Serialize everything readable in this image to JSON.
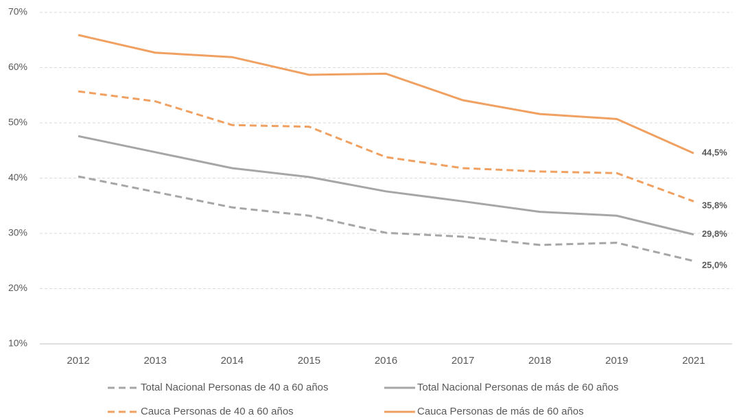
{
  "chart_data": {
    "type": "line",
    "categories": [
      "2012",
      "2013",
      "2014",
      "2015",
      "2016",
      "2017",
      "2018",
      "2019",
      "2021"
    ],
    "series": [
      {
        "name": "Total Nacional Personas de 40 a 60 años",
        "color": "#a6a6a6",
        "dash": true,
        "values": [
          40.3,
          37.5,
          34.7,
          33.2,
          30.1,
          29.4,
          27.9,
          28.3,
          25.0
        ],
        "value_labels": [
          null,
          null,
          null,
          null,
          null,
          null,
          null,
          null,
          "25,0%"
        ]
      },
      {
        "name": "Total Nacional Personas de más de 60 años",
        "color": "#a6a6a6",
        "dash": false,
        "values": [
          47.6,
          44.7,
          41.8,
          40.2,
          37.6,
          35.8,
          33.9,
          33.2,
          29.8
        ],
        "value_labels": [
          null,
          null,
          null,
          null,
          null,
          null,
          null,
          null,
          "29,8%"
        ]
      },
      {
        "name": "Cauca Personas de 40 a 60 años",
        "color": "#f0a060",
        "dash": true,
        "values": [
          55.7,
          53.9,
          49.6,
          49.3,
          43.8,
          41.8,
          41.2,
          40.9,
          35.8
        ],
        "value_labels": [
          null,
          null,
          null,
          null,
          null,
          null,
          null,
          null,
          "35,8%"
        ]
      },
      {
        "name": "Cauca Personas de más de 60 años",
        "color": "#f0a060",
        "dash": false,
        "values": [
          65.9,
          62.7,
          61.9,
          58.7,
          58.9,
          54.1,
          51.6,
          50.7,
          44.5
        ],
        "value_labels": [
          null,
          null,
          null,
          null,
          null,
          null,
          null,
          null,
          "44,5%"
        ]
      }
    ],
    "ylim": [
      10,
      70
    ],
    "yticks": [
      {
        "value": 10,
        "label": "10%"
      },
      {
        "value": 20,
        "label": "20%"
      },
      {
        "value": 30,
        "label": "30%"
      },
      {
        "value": 40,
        "label": "40%"
      },
      {
        "value": 50,
        "label": "50%"
      },
      {
        "value": 60,
        "label": "60%"
      },
      {
        "value": 70,
        "label": "70%"
      }
    ],
    "grid": true,
    "legend": "bottom"
  }
}
